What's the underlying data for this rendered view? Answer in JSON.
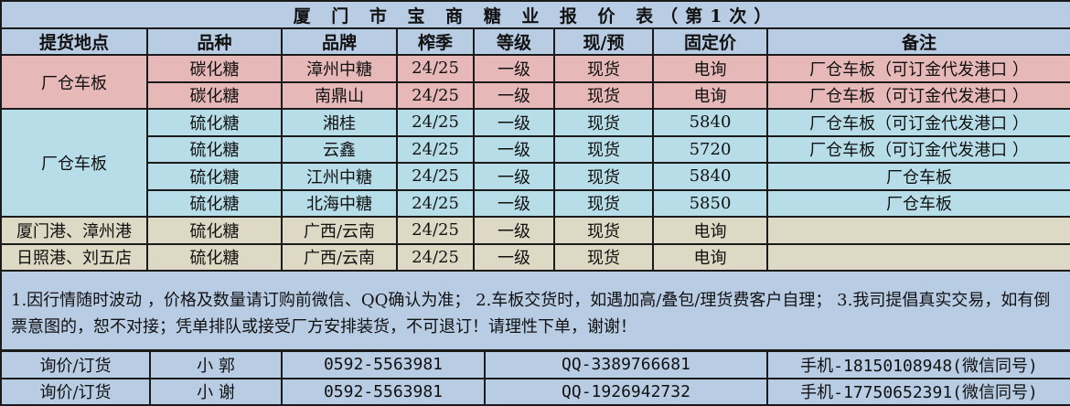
{
  "title": "厦 门 市 宝 商 糖 业 报 价 表（第1次）",
  "headers": [
    "提货地点",
    "品种",
    "品牌",
    "榨季",
    "等级",
    "现/预",
    "固定价",
    "备注"
  ],
  "groups": [
    {
      "location": "厂仓车板",
      "color": "#e6b8b7",
      "rows": [
        {
          "variety": "碳化糖",
          "brand": "漳州中糖",
          "season": "24/25",
          "grade": "一级",
          "type": "现货",
          "price": "电询",
          "note": "厂仓车板（可订金代发港口 ）"
        },
        {
          "variety": "碳化糖",
          "brand": "南鼎山",
          "season": "24/25",
          "grade": "一级",
          "type": "现货",
          "price": "电询",
          "note": "厂仓车板（可订金代发港口 ）"
        }
      ]
    },
    {
      "location": "厂仓车板",
      "color": "#b7dee8",
      "rows": [
        {
          "variety": "硫化糖",
          "brand": "湘桂",
          "season": "24/25",
          "grade": "一级",
          "type": "现货",
          "price": "5840",
          "note": "厂仓车板（可订金代发港口 ）"
        },
        {
          "variety": "硫化糖",
          "brand": "云鑫",
          "season": "24/25",
          "grade": "一级",
          "type": "现货",
          "price": "5720",
          "note": "厂仓车板（可订金代发港口 ）"
        },
        {
          "variety": "硫化糖",
          "brand": "江州中糖",
          "season": "24/25",
          "grade": "一级",
          "type": "现货",
          "price": "5840",
          "note": "厂仓车板"
        },
        {
          "variety": "硫化糖",
          "brand": "北海中糖",
          "season": "24/25",
          "grade": "一级",
          "type": "现货",
          "price": "5850",
          "note": "厂仓车板"
        }
      ]
    },
    {
      "location": "厦门港、漳州港",
      "color": "#ddd9c4",
      "rows": [
        {
          "variety": "硫化糖",
          "brand": "广西/云南",
          "season": "24/25",
          "grade": "一级",
          "type": "现货",
          "price": "电询",
          "note": ""
        }
      ]
    },
    {
      "location": "日照港、刘五店",
      "color": "#ddd9c4",
      "rows": [
        {
          "variety": "硫化糖",
          "brand": "广西/云南",
          "season": "24/25",
          "grade": "一级",
          "type": "现货",
          "price": "电询",
          "note": ""
        }
      ]
    }
  ],
  "notes": "1.因行情随时波动 ，价格及数量请订购前微信、QQ确认为准； 2.车板交货时，如遇加高/叠包/理货费客户自理； 3.我司提倡真实交易，如有倒票意图的，恕不对接；凭单排队或接受厂方安排装货，不可退订！请理性下单，谢谢！",
  "contacts": [
    {
      "label": "询价/订货",
      "name": "小 郭",
      "phone": "0592-5563981",
      "qq": "QQ-3389766681",
      "mobile": "手机-18150108948(微信同号)"
    },
    {
      "label": "询价/订货",
      "name": "小 谢",
      "phone": "0592-5563981",
      "qq": "QQ-1926942732",
      "mobile": "手机-17750652391(微信同号)"
    }
  ]
}
